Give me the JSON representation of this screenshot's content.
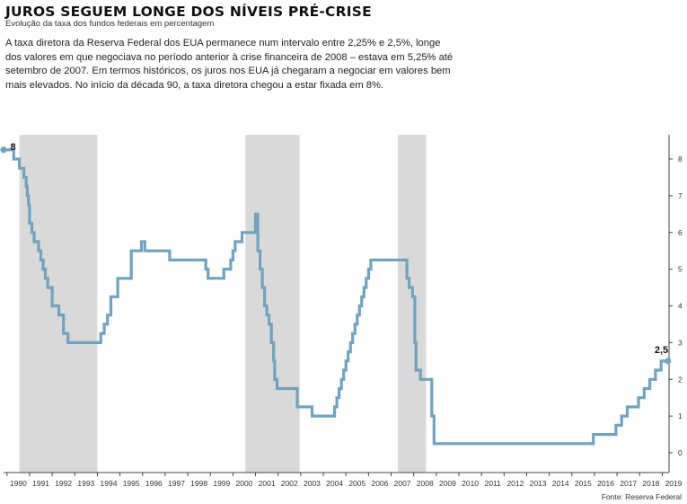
{
  "header": {
    "title": "JUROS SEGUEM LONGE DOS NÍVEIS PRÉ-CRISE",
    "subtitle": "Evolução da taxa dos fundos federais em percentagem",
    "intro": "A taxa diretora da Reserva Federal dos EUA permanece num intervalo entre 2,25% e 2,5%, longe dos valores em que negociava no período anterior à crise financeira de 2008 – estava em 5,25% até setembro de 2007. Em termos históricos, os juros nos EUA já chegaram a negociar em valores bem mais elevados. No início da década 90, a taxa diretora chegou a estar fixada em 8%."
  },
  "footer": {
    "source": "Fonte: Reserva Federal"
  },
  "colors": {
    "line": "#6fa3bf",
    "shade": "#d9d9d9"
  },
  "chart_data": {
    "type": "line",
    "step": true,
    "xlabel": "",
    "ylabel": "",
    "xlim": [
      1989.85,
      2019.3
    ],
    "ylim": [
      0,
      8
    ],
    "yticks": [
      "0",
      "1",
      "2",
      "3",
      "4",
      "5",
      "6",
      "7",
      "8"
    ],
    "xticks": [
      "1990",
      "1991",
      "1992",
      "1993",
      "1994",
      "1995",
      "1996",
      "1997",
      "1998",
      "1999",
      "2000",
      "2001",
      "2002",
      "2003",
      "2004",
      "2005",
      "2006",
      "2007",
      "2008",
      "2009",
      "2010",
      "2011",
      "2012",
      "2013",
      "2014",
      "2015",
      "2016",
      "2017",
      "2018",
      "2019"
    ],
    "grid": false,
    "shaded_periods": [
      [
        1990.55,
        1994.0
      ],
      [
        2000.55,
        2002.95
      ],
      [
        2007.3,
        2008.55
      ]
    ],
    "annotations": [
      {
        "label": "8",
        "x": 1989.95,
        "y": 8
      },
      {
        "label": "2,5",
        "x": 2019.2,
        "y": 2.5
      }
    ],
    "series": [
      {
        "x": [
          1989.85,
          1990.3,
          1990.55,
          1990.75,
          1990.85,
          1990.9,
          1990.95,
          1991.0,
          1991.1,
          1991.2,
          1991.4,
          1991.5,
          1991.6,
          1991.7,
          1991.8,
          1992.0,
          1992.3,
          1992.5,
          1992.7,
          1994.05,
          1994.15,
          1994.3,
          1994.45,
          1994.6,
          1994.9,
          1995.5,
          1995.95,
          1996.1,
          1997.2,
          1998.7,
          1998.8,
          1998.9,
          1999.5,
          1999.6,
          1999.9,
          2000.0,
          2000.1,
          2000.4,
          2001.0,
          2001.1,
          2001.2,
          2001.3,
          2001.4,
          2001.5,
          2001.6,
          2001.7,
          2001.8,
          2001.85,
          2001.95,
          2002.85,
          2003.5,
          2004.5,
          2004.6,
          2004.7,
          2004.8,
          2004.9,
          2005.0,
          2005.1,
          2005.2,
          2005.3,
          2005.4,
          2005.5,
          2005.6,
          2005.7,
          2005.8,
          2005.9,
          2006.0,
          2006.1,
          2006.2,
          2006.35,
          2006.45,
          2006.55,
          2007.7,
          2007.8,
          2007.95,
          2008.05,
          2008.1,
          2008.3,
          2008.8,
          2008.9,
          2015.95,
          2016.95,
          2017.2,
          2017.45,
          2017.95,
          2018.2,
          2018.45,
          2018.7,
          2018.95,
          2019.25
        ],
        "y": [
          8.25,
          8.0,
          7.75,
          7.5,
          7.25,
          7.0,
          6.75,
          6.25,
          6.0,
          5.75,
          5.5,
          5.25,
          5.0,
          4.75,
          4.5,
          4.0,
          3.75,
          3.25,
          3.0,
          3.0,
          3.25,
          3.5,
          3.75,
          4.25,
          4.75,
          5.5,
          5.75,
          5.5,
          5.25,
          5.25,
          5.0,
          4.75,
          4.75,
          5.0,
          5.25,
          5.5,
          5.75,
          6.0,
          6.5,
          5.5,
          5.0,
          4.5,
          4.0,
          3.75,
          3.5,
          3.0,
          2.5,
          2.0,
          1.75,
          1.25,
          1.0,
          1.25,
          1.5,
          1.75,
          2.0,
          2.25,
          2.5,
          2.75,
          3.0,
          3.25,
          3.5,
          3.75,
          4.0,
          4.25,
          4.5,
          4.75,
          5.0,
          5.25,
          5.25,
          5.25,
          5.25,
          5.25,
          4.75,
          4.5,
          4.25,
          3.0,
          2.25,
          2.0,
          1.0,
          0.25,
          0.5,
          0.75,
          1.0,
          1.25,
          1.5,
          1.75,
          2.0,
          2.25,
          2.5,
          2.5
        ]
      }
    ]
  }
}
